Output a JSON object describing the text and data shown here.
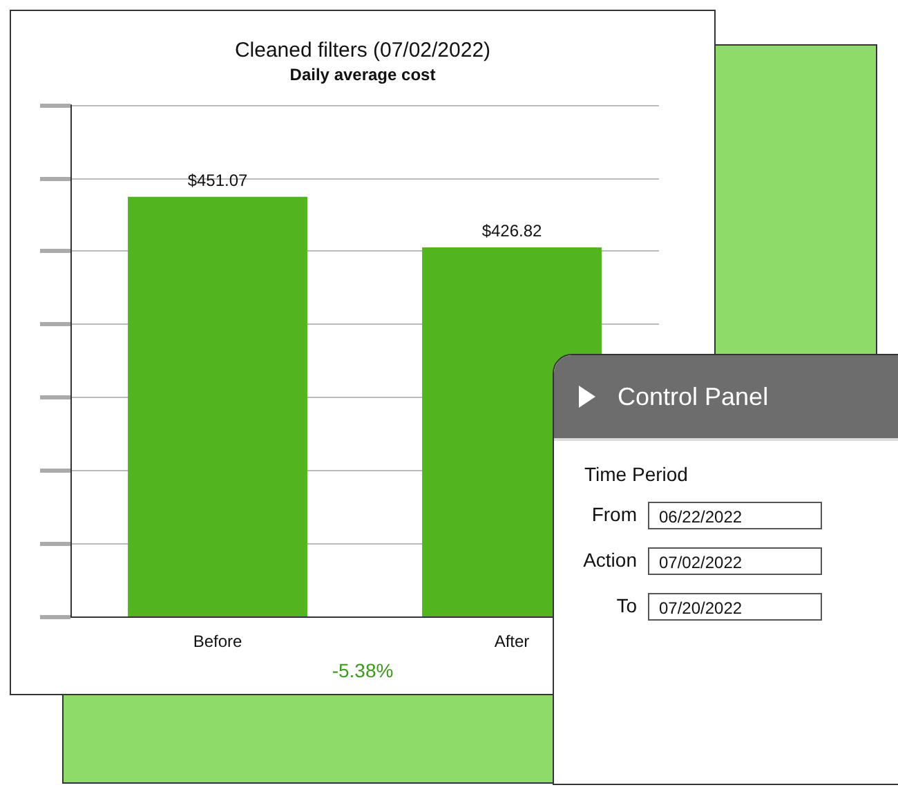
{
  "chart_data": [
    {
      "type": "bar",
      "title": "Cleaned filters (07/02/2022)",
      "subtitle": "Daily average cost",
      "categories": [
        "Before",
        "After"
      ],
      "values": [
        451.07,
        426.82
      ],
      "color": "#52b41e",
      "value_labels": [
        "$451.07",
        "$426.82"
      ],
      "ylim": [
        250,
        495
      ],
      "yticks": [
        {
          "value": 250,
          "label": null
        },
        {
          "value": 285,
          "label": null
        },
        {
          "value": 320,
          "label": null
        },
        {
          "value": 355,
          "label": null
        },
        {
          "value": 390,
          "label": null
        },
        {
          "value": 425,
          "label": null
        },
        {
          "value": 460,
          "label": null
        },
        {
          "value": 495,
          "label": null
        }
      ],
      "grid": "y",
      "tick_labels": "x",
      "annotations": [
        "-5.38%"
      ]
    },
    {
      "type": "other",
      "title": "Control Panel",
      "annotations": [
        "Time Period",
        "From",
        "06/22/2022",
        "Action",
        "07/02/2022",
        "To",
        "07/20/2022"
      ]
    }
  ]
}
